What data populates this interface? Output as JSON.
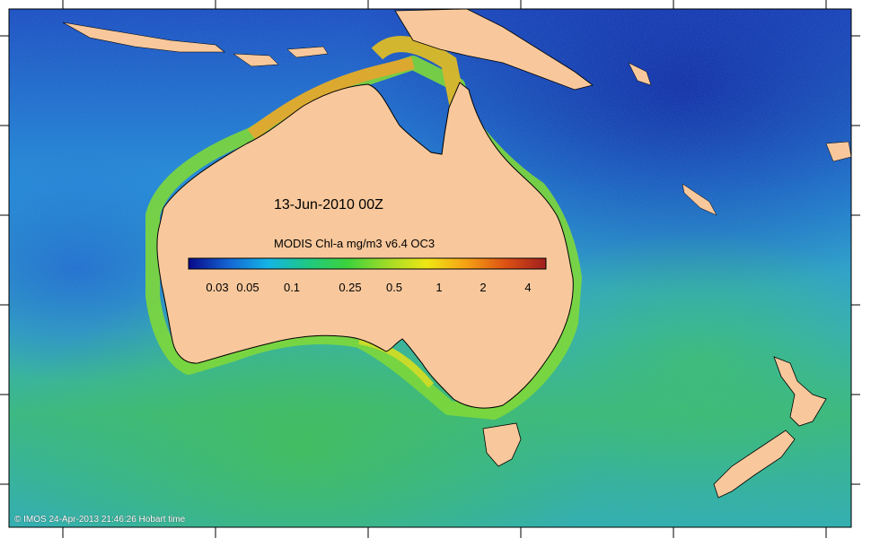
{
  "map": {
    "title": "13-Jun-2010 00Z",
    "product": "MODIS Chl-a mg/m3 v6.4 OC3",
    "credit": "© IMOS 24-Apr-2013 21:46:26 Hobart time",
    "colorbar": {
      "ticks": [
        "0.03",
        "0.05",
        "0.1",
        "0.25",
        "0.5",
        "1",
        "2",
        "4"
      ],
      "colors": [
        "#08088a",
        "#1464d2",
        "#14b4e6",
        "#1ec882",
        "#3cd23c",
        "#a0dc28",
        "#f0e614",
        "#f5a014",
        "#dc5014",
        "#a01e1e"
      ]
    },
    "colors": {
      "land": "#f8c89c",
      "ocean_deep": "#1e50c8",
      "ocean_mid": "#28aadc",
      "ocean_green": "#3cc878"
    },
    "regions": [
      "Australia",
      "Tasmania",
      "New Zealand",
      "New Guinea"
    ]
  }
}
